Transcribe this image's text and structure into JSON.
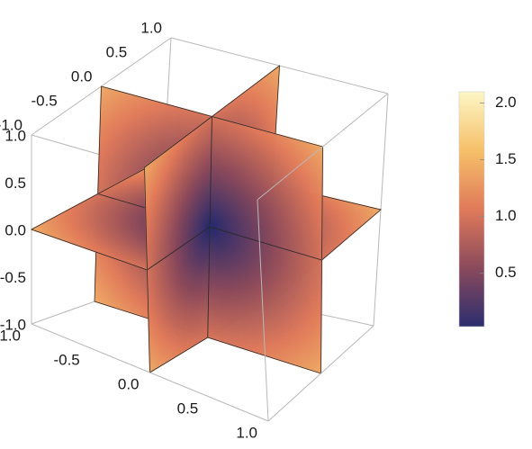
{
  "chart_data": {
    "type": "density-3d-slices",
    "description_of_values": "colour = distance from origin sqrt(x^2+y^2+z^2) on three orthogonal planes x=0, y=0, z=0",
    "x_ticks": [
      "-1.0",
      "-0.5",
      "0.0",
      "0.5",
      "1.0"
    ],
    "y_ticks": [
      "-1.0",
      "-0.5",
      "0.0",
      "0.5",
      "1.0"
    ],
    "z_ticks": [
      "-1.0",
      "-0.5",
      "0.0",
      "0.5",
      "1.0"
    ],
    "xlim": [
      -1,
      1
    ],
    "ylim": [
      -1,
      1
    ],
    "zlim": [
      -1,
      1
    ],
    "planes": [
      "x=0",
      "y=0",
      "z=0"
    ],
    "colorbar": {
      "ticks": [
        "0.5",
        "1.0",
        "1.5",
        "2.0"
      ],
      "min": 0.03,
      "max": 2.1,
      "stops": [
        "#2b2d6e",
        "#8a4a5c",
        "#e07a5a",
        "#f6c069",
        "#fdf6c6"
      ]
    },
    "box": true,
    "grid": false
  }
}
